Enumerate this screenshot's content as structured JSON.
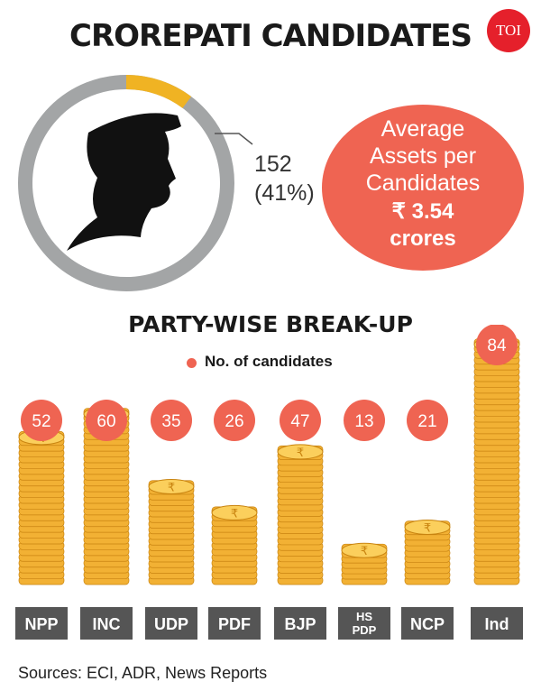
{
  "header": {
    "title": "CROREPATI CANDIDATES",
    "logo_text": "TOI"
  },
  "summary": {
    "crorepati_count": "152",
    "crorepati_share": "(41%)",
    "share_fraction": 0.41,
    "average_label_lines": [
      "Average",
      "Assets per",
      "Candidates"
    ],
    "average_value": "₹ 3.54",
    "average_unit": "crores"
  },
  "colors": {
    "donut_track": "#a3a5a6",
    "donut_highlight": "#f0b323",
    "accent": "#ef6452",
    "coin": "#f2b134",
    "coin_edge": "#c98410",
    "coin_top": "#fbcf5c",
    "label_bg": "#555555",
    "label_text": "#ffffff"
  },
  "icons": {
    "silhouette": "person-silhouette-icon",
    "coin_stack": "coin-stack-icon",
    "rupee": "rupee-icon"
  },
  "chart_data": {
    "type": "bar",
    "title": "PARTY-WISE BREAK-UP",
    "legend": [
      {
        "label": "No. of candidates",
        "color": "#ef6452"
      }
    ],
    "legend_position": "top-center",
    "categories": [
      "NPP",
      "INC",
      "UDP",
      "PDF",
      "BJP",
      "HS PDP",
      "NCP",
      "Ind"
    ],
    "series": [
      {
        "name": "No. of candidates",
        "values": [
          52,
          60,
          35,
          26,
          47,
          13,
          21,
          84
        ]
      }
    ],
    "ylim": [
      0,
      84
    ],
    "grid": false
  },
  "footer": {
    "sources": "Sources: ECI, ADR, News Reports"
  }
}
